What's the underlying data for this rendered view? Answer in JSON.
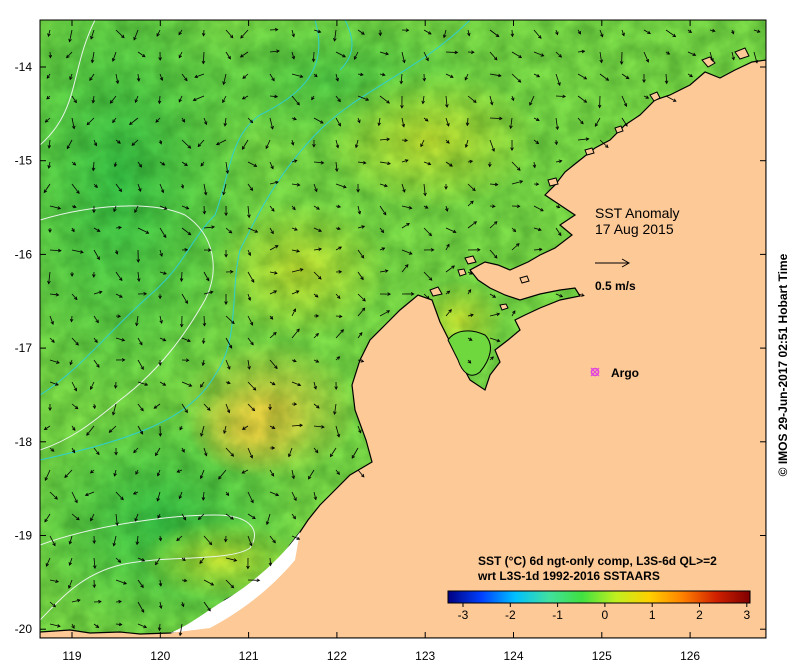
{
  "map": {
    "title_line1": "SST Anomaly",
    "title_line2": "17 Aug 2015",
    "vector_scale_label": "0.5 m/s",
    "marker_label": "Argo",
    "land_color": "#fcc997",
    "marker_color": "#e040e0",
    "contour_color": "#e8f4e8",
    "shelf_color": "#30d0d0",
    "lon_ticks": [
      "119",
      "120",
      "121",
      "122",
      "123",
      "124",
      "125",
      "126"
    ],
    "lat_ticks": [
      "-14",
      "-15",
      "-16",
      "-17",
      "-18",
      "-19",
      "-20"
    ]
  },
  "colorbar": {
    "caption_line1": "SST (°C) 6d ngt-only comp, L3S-6d QL>=2",
    "caption_line2": "wrt L3S-1d 1992-2016 SSTAARS",
    "ticks": [
      "-3",
      "-2",
      "-1",
      "0",
      "1",
      "2",
      "3"
    ],
    "min": -3,
    "max": 3,
    "colors": [
      "#000080",
      "#0040ff",
      "#00c0ff",
      "#40e0a0",
      "#40e040",
      "#c0f020",
      "#ffd000",
      "#ff8000",
      "#d02000",
      "#800000"
    ]
  },
  "credit": "© IMOS 29-Jun-2017 02:51 Hobart Time"
}
